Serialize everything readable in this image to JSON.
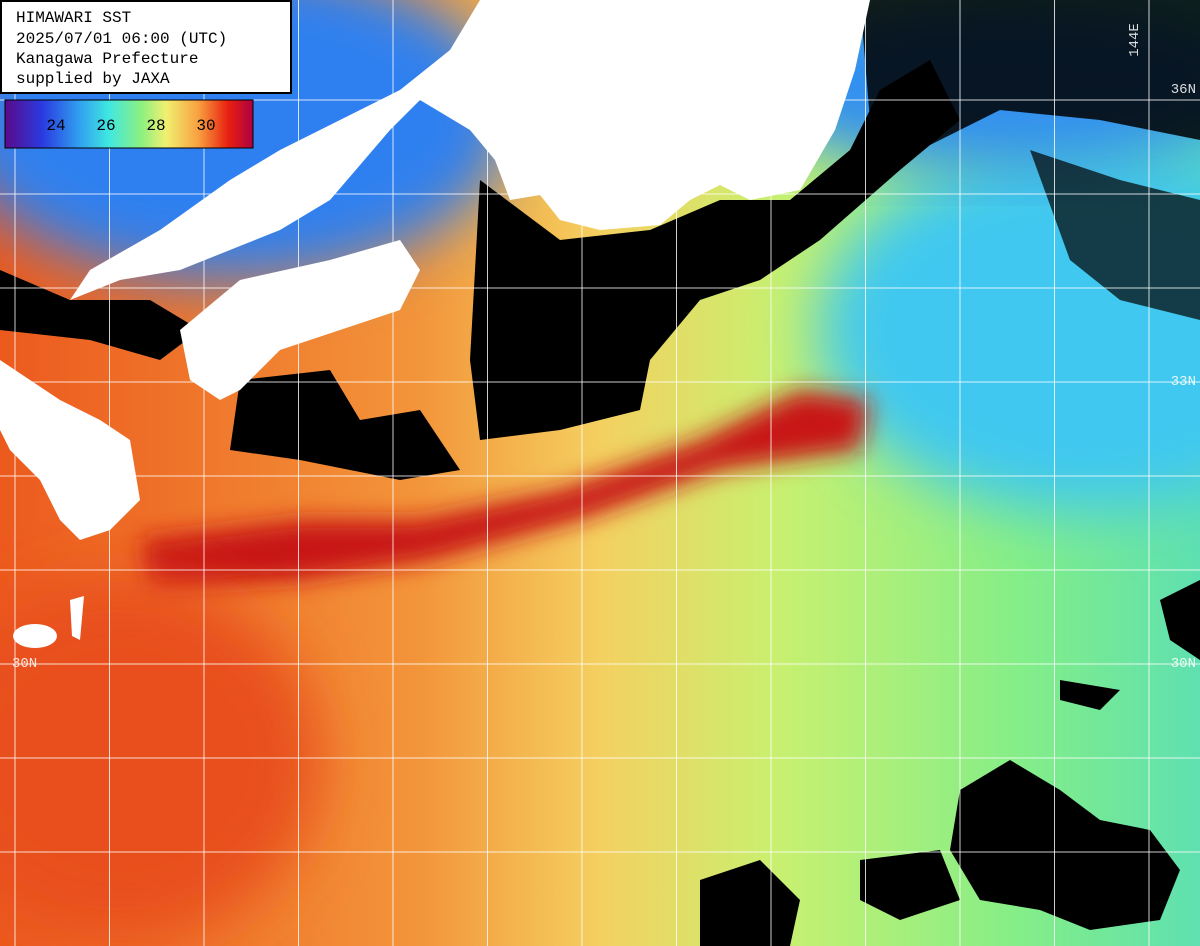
{
  "header": {
    "lines": [
      "HIMAWARI SST",
      "2025/07/01 06:00 (UTC)",
      "Kanagawa Prefecture",
      "supplied by JAXA"
    ]
  },
  "colorbar": {
    "labels": [
      "24",
      "26",
      "28",
      "30"
    ]
  },
  "grid_labels": {
    "top": [
      "144E"
    ],
    "right": [
      "36N",
      "33N",
      "30N"
    ],
    "left": [
      "30N"
    ]
  }
}
